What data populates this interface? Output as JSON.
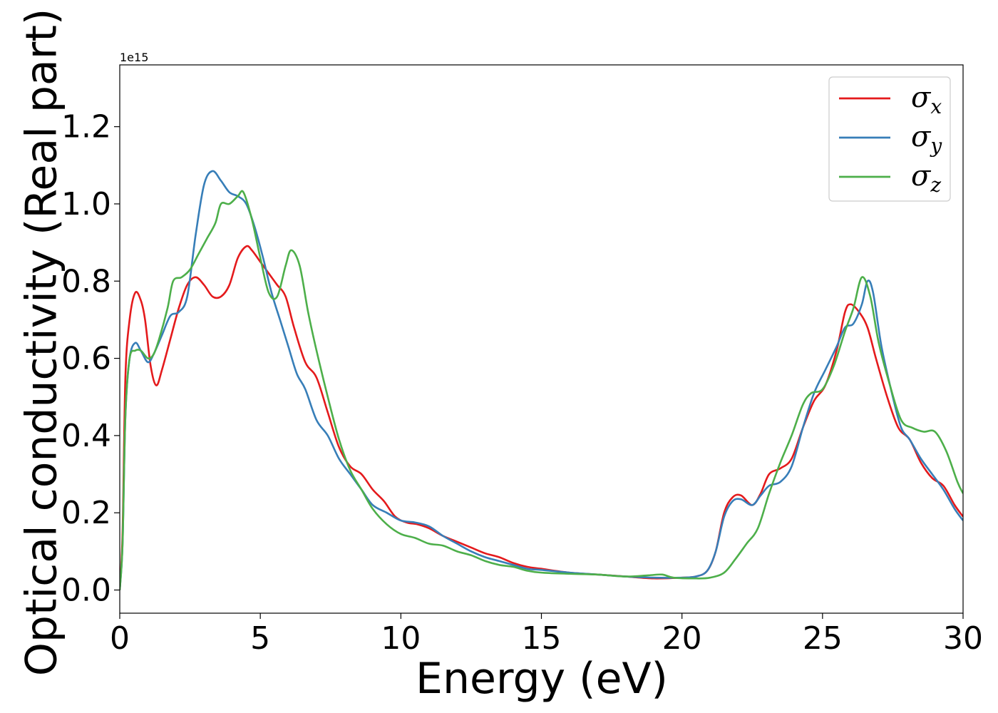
{
  "chart_data": {
    "type": "line",
    "xlabel": "Energy (eV)",
    "ylabel": "Optical conductivity (Real part)",
    "y_offset_text": "1e15",
    "xlim": [
      0,
      30
    ],
    "ylim": [
      -0.06,
      1.36
    ],
    "x_ticks": [
      0,
      5,
      10,
      15,
      20,
      25,
      30
    ],
    "x_tick_labels": [
      "0",
      "5",
      "10",
      "15",
      "20",
      "25",
      "30"
    ],
    "y_ticks": [
      0.0,
      0.2,
      0.4,
      0.6,
      0.8,
      1.0,
      1.2
    ],
    "y_tick_labels": [
      "0.0",
      "0.2",
      "0.4",
      "0.6",
      "0.8",
      "1.0",
      "1.2"
    ],
    "grid": false,
    "legend_position": "top-right",
    "series": [
      {
        "name": "σx",
        "subscript": "x",
        "color": "#e41a1c",
        "points": [
          [
            0,
            0
          ],
          [
            0.1,
            0.15
          ],
          [
            0.2,
            0.55
          ],
          [
            0.35,
            0.7
          ],
          [
            0.55,
            0.77
          ],
          [
            0.75,
            0.75
          ],
          [
            0.9,
            0.7
          ],
          [
            1.1,
            0.58
          ],
          [
            1.3,
            0.53
          ],
          [
            1.5,
            0.57
          ],
          [
            1.8,
            0.65
          ],
          [
            2.1,
            0.73
          ],
          [
            2.4,
            0.79
          ],
          [
            2.7,
            0.81
          ],
          [
            3.0,
            0.79
          ],
          [
            3.3,
            0.76
          ],
          [
            3.6,
            0.76
          ],
          [
            3.9,
            0.79
          ],
          [
            4.2,
            0.86
          ],
          [
            4.5,
            0.89
          ],
          [
            4.7,
            0.88
          ],
          [
            5.0,
            0.85
          ],
          [
            5.3,
            0.82
          ],
          [
            5.6,
            0.79
          ],
          [
            5.9,
            0.76
          ],
          [
            6.2,
            0.68
          ],
          [
            6.6,
            0.59
          ],
          [
            7.0,
            0.55
          ],
          [
            7.4,
            0.46
          ],
          [
            7.8,
            0.37
          ],
          [
            8.2,
            0.32
          ],
          [
            8.6,
            0.3
          ],
          [
            9.0,
            0.26
          ],
          [
            9.4,
            0.23
          ],
          [
            9.8,
            0.19
          ],
          [
            10.2,
            0.175
          ],
          [
            10.6,
            0.17
          ],
          [
            11.0,
            0.16
          ],
          [
            11.5,
            0.14
          ],
          [
            12.0,
            0.125
          ],
          [
            12.5,
            0.11
          ],
          [
            13.0,
            0.095
          ],
          [
            13.5,
            0.085
          ],
          [
            14.0,
            0.07
          ],
          [
            14.5,
            0.06
          ],
          [
            15.0,
            0.055
          ],
          [
            16,
            0.045
          ],
          [
            17,
            0.04
          ],
          [
            18,
            0.035
          ],
          [
            19,
            0.03
          ],
          [
            20,
            0.032
          ],
          [
            20.5,
            0.035
          ],
          [
            20.9,
            0.05
          ],
          [
            21.2,
            0.1
          ],
          [
            21.5,
            0.2
          ],
          [
            21.8,
            0.24
          ],
          [
            22.1,
            0.245
          ],
          [
            22.5,
            0.22
          ],
          [
            22.8,
            0.25
          ],
          [
            23.1,
            0.3
          ],
          [
            23.5,
            0.315
          ],
          [
            23.9,
            0.34
          ],
          [
            24.3,
            0.42
          ],
          [
            24.7,
            0.49
          ],
          [
            25.1,
            0.53
          ],
          [
            25.5,
            0.62
          ],
          [
            25.8,
            0.72
          ],
          [
            26.0,
            0.74
          ],
          [
            26.3,
            0.72
          ],
          [
            26.6,
            0.68
          ],
          [
            26.9,
            0.6
          ],
          [
            27.3,
            0.5
          ],
          [
            27.7,
            0.42
          ],
          [
            28.1,
            0.39
          ],
          [
            28.5,
            0.33
          ],
          [
            28.9,
            0.29
          ],
          [
            29.3,
            0.27
          ],
          [
            29.7,
            0.22
          ],
          [
            30,
            0.19
          ]
        ]
      },
      {
        "name": "σy",
        "subscript": "y",
        "color": "#377eb8",
        "points": [
          [
            0,
            0
          ],
          [
            0.1,
            0.12
          ],
          [
            0.2,
            0.45
          ],
          [
            0.35,
            0.6
          ],
          [
            0.55,
            0.64
          ],
          [
            0.75,
            0.62
          ],
          [
            1.0,
            0.59
          ],
          [
            1.2,
            0.61
          ],
          [
            1.5,
            0.66
          ],
          [
            1.8,
            0.71
          ],
          [
            2.1,
            0.72
          ],
          [
            2.4,
            0.76
          ],
          [
            2.7,
            0.92
          ],
          [
            3.0,
            1.05
          ],
          [
            3.3,
            1.085
          ],
          [
            3.6,
            1.06
          ],
          [
            3.9,
            1.03
          ],
          [
            4.2,
            1.02
          ],
          [
            4.5,
            1.0
          ],
          [
            4.8,
            0.94
          ],
          [
            5.1,
            0.86
          ],
          [
            5.4,
            0.77
          ],
          [
            5.7,
            0.7
          ],
          [
            6.0,
            0.63
          ],
          [
            6.3,
            0.56
          ],
          [
            6.6,
            0.52
          ],
          [
            7.0,
            0.44
          ],
          [
            7.4,
            0.4
          ],
          [
            7.8,
            0.34
          ],
          [
            8.2,
            0.3
          ],
          [
            8.6,
            0.26
          ],
          [
            9.0,
            0.22
          ],
          [
            9.5,
            0.2
          ],
          [
            10.0,
            0.18
          ],
          [
            10.5,
            0.175
          ],
          [
            11.0,
            0.165
          ],
          [
            11.5,
            0.14
          ],
          [
            12.0,
            0.12
          ],
          [
            12.5,
            0.1
          ],
          [
            13.0,
            0.085
          ],
          [
            13.5,
            0.075
          ],
          [
            14.0,
            0.065
          ],
          [
            14.5,
            0.055
          ],
          [
            15.0,
            0.052
          ],
          [
            16,
            0.045
          ],
          [
            17,
            0.04
          ],
          [
            18,
            0.035
          ],
          [
            19,
            0.032
          ],
          [
            20,
            0.032
          ],
          [
            20.5,
            0.035
          ],
          [
            20.9,
            0.05
          ],
          [
            21.2,
            0.1
          ],
          [
            21.5,
            0.19
          ],
          [
            21.8,
            0.23
          ],
          [
            22.1,
            0.235
          ],
          [
            22.5,
            0.22
          ],
          [
            22.8,
            0.245
          ],
          [
            23.1,
            0.27
          ],
          [
            23.5,
            0.28
          ],
          [
            23.9,
            0.32
          ],
          [
            24.3,
            0.42
          ],
          [
            24.7,
            0.51
          ],
          [
            25.1,
            0.57
          ],
          [
            25.5,
            0.63
          ],
          [
            25.8,
            0.68
          ],
          [
            26.1,
            0.69
          ],
          [
            26.4,
            0.74
          ],
          [
            26.6,
            0.8
          ],
          [
            26.8,
            0.77
          ],
          [
            27.1,
            0.63
          ],
          [
            27.5,
            0.5
          ],
          [
            27.8,
            0.42
          ],
          [
            28.1,
            0.39
          ],
          [
            28.5,
            0.34
          ],
          [
            28.9,
            0.3
          ],
          [
            29.3,
            0.26
          ],
          [
            29.7,
            0.21
          ],
          [
            30,
            0.18
          ]
        ]
      },
      {
        "name": "σz",
        "subscript": "z",
        "color": "#4daf4a",
        "points": [
          [
            0,
            0
          ],
          [
            0.1,
            0.12
          ],
          [
            0.2,
            0.45
          ],
          [
            0.35,
            0.6
          ],
          [
            0.55,
            0.62
          ],
          [
            0.75,
            0.62
          ],
          [
            1.0,
            0.6
          ],
          [
            1.2,
            0.61
          ],
          [
            1.4,
            0.65
          ],
          [
            1.7,
            0.73
          ],
          [
            1.9,
            0.8
          ],
          [
            2.2,
            0.81
          ],
          [
            2.5,
            0.83
          ],
          [
            2.8,
            0.87
          ],
          [
            3.1,
            0.91
          ],
          [
            3.4,
            0.95
          ],
          [
            3.6,
            1.0
          ],
          [
            3.9,
            1.0
          ],
          [
            4.2,
            1.02
          ],
          [
            4.4,
            1.03
          ],
          [
            4.7,
            0.96
          ],
          [
            5.0,
            0.86
          ],
          [
            5.3,
            0.77
          ],
          [
            5.6,
            0.76
          ],
          [
            5.9,
            0.84
          ],
          [
            6.1,
            0.88
          ],
          [
            6.4,
            0.84
          ],
          [
            6.7,
            0.72
          ],
          [
            7.0,
            0.62
          ],
          [
            7.4,
            0.5
          ],
          [
            7.8,
            0.39
          ],
          [
            8.2,
            0.31
          ],
          [
            8.6,
            0.26
          ],
          [
            9.0,
            0.21
          ],
          [
            9.5,
            0.17
          ],
          [
            10.0,
            0.145
          ],
          [
            10.5,
            0.135
          ],
          [
            11.0,
            0.12
          ],
          [
            11.5,
            0.115
          ],
          [
            12.0,
            0.1
          ],
          [
            12.5,
            0.09
          ],
          [
            13.0,
            0.075
          ],
          [
            13.5,
            0.065
          ],
          [
            14.0,
            0.06
          ],
          [
            14.5,
            0.05
          ],
          [
            15.0,
            0.045
          ],
          [
            16,
            0.042
          ],
          [
            17,
            0.04
          ],
          [
            18,
            0.035
          ],
          [
            18.8,
            0.038
          ],
          [
            19.3,
            0.04
          ],
          [
            19.7,
            0.032
          ],
          [
            20.5,
            0.03
          ],
          [
            21.0,
            0.032
          ],
          [
            21.5,
            0.045
          ],
          [
            21.9,
            0.08
          ],
          [
            22.3,
            0.12
          ],
          [
            22.7,
            0.16
          ],
          [
            23.1,
            0.25
          ],
          [
            23.5,
            0.33
          ],
          [
            23.9,
            0.4
          ],
          [
            24.3,
            0.48
          ],
          [
            24.6,
            0.51
          ],
          [
            25.0,
            0.52
          ],
          [
            25.4,
            0.58
          ],
          [
            25.8,
            0.67
          ],
          [
            26.1,
            0.73
          ],
          [
            26.4,
            0.81
          ],
          [
            26.7,
            0.76
          ],
          [
            27.0,
            0.64
          ],
          [
            27.4,
            0.53
          ],
          [
            27.8,
            0.44
          ],
          [
            28.2,
            0.42
          ],
          [
            28.6,
            0.41
          ],
          [
            29.0,
            0.41
          ],
          [
            29.4,
            0.36
          ],
          [
            29.8,
            0.28
          ],
          [
            30,
            0.25
          ]
        ]
      }
    ]
  }
}
